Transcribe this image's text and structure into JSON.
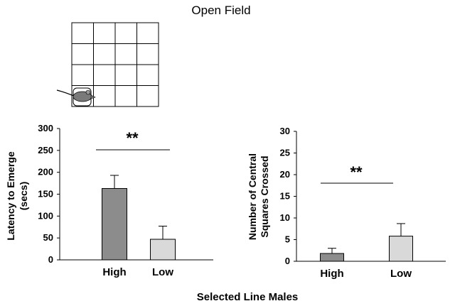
{
  "figure": {
    "title": "Open Field",
    "shared_xlabel": "Selected Line Males"
  },
  "illustration": {
    "grid_rows": 4,
    "grid_cols": 4
  },
  "colors": {
    "high": "#8c8c8c",
    "low": "#d9d9d9",
    "axis": "#000000"
  },
  "chart_data": [
    {
      "type": "bar",
      "categories": [
        "High",
        "Low"
      ],
      "values": [
        163,
        47
      ],
      "errors": [
        30,
        30
      ],
      "ylabel_lines": [
        "Latency  to Emerge",
        "(secs)"
      ],
      "ylim": [
        0,
        300
      ],
      "yticks": [
        0,
        50,
        100,
        150,
        200,
        250,
        300
      ],
      "significance": "**",
      "grid": false
    },
    {
      "type": "bar",
      "categories": [
        "High",
        "Low"
      ],
      "values": [
        1.8,
        5.8
      ],
      "errors": [
        1.2,
        2.9
      ],
      "ylabel_lines": [
        "Number of Central",
        "Squares Crossed"
      ],
      "ylim": [
        0,
        30
      ],
      "yticks": [
        0,
        5,
        10,
        15,
        20,
        25,
        30
      ],
      "significance": "**",
      "grid": false
    }
  ]
}
